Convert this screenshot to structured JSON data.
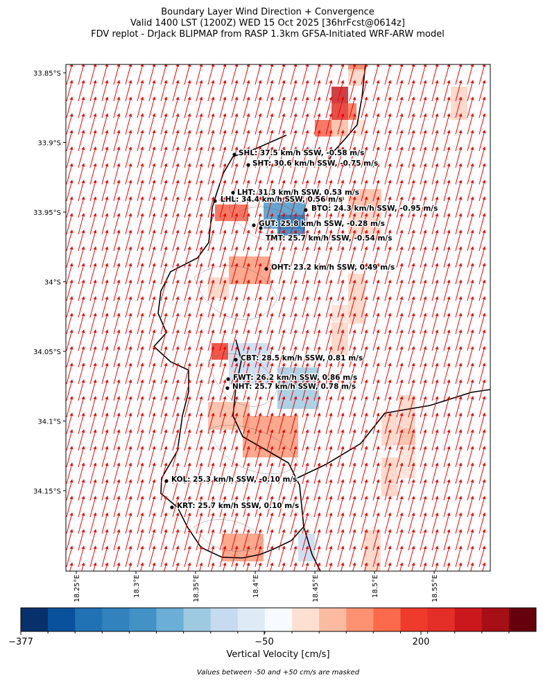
{
  "header": {
    "title_lines": [
      "Boundary Layer Wind Direction + Convergence",
      "Valid 1400 LST (1200Z) WED 15 Oct 2025 [36hrFcst@0614z]",
      "FDV replot - DrJack BLIPMAP from RASP 1.3km GFSA-Initiated WRF-ARW model"
    ]
  },
  "map": {
    "lat_range": [
      -34.2078,
      -33.844
    ],
    "lon_range": [
      18.2413,
      18.597
    ],
    "lat_ticks": [
      {
        "value": -33.85,
        "label": "33.85°S"
      },
      {
        "value": -33.9,
        "label": "33.9°S"
      },
      {
        "value": -33.95,
        "label": "33.95°S"
      },
      {
        "value": -34,
        "label": "34°S"
      },
      {
        "value": -34.05,
        "label": "34.05°S"
      },
      {
        "value": -34.1,
        "label": "34.1°S"
      },
      {
        "value": -34.15,
        "label": "34.15°S"
      }
    ],
    "lon_ticks": [
      {
        "value": 18.25,
        "label": "18.25°E"
      },
      {
        "value": 18.3,
        "label": "18.3°E"
      },
      {
        "value": 18.35,
        "label": "18.35°E"
      },
      {
        "value": 18.4,
        "label": "18.4°E"
      },
      {
        "value": 18.45,
        "label": "18.45°E"
      },
      {
        "value": 18.5,
        "label": "18.5°E"
      },
      {
        "value": 18.55,
        "label": "18.55°E"
      }
    ],
    "stations": [
      {
        "label": "SHL: 37.5 km/h SSW, -0.58 m/s"
      },
      {
        "label": "SHT: 30.6 km/h SSW, -0.75 m/s"
      },
      {
        "label": "LHT: 31.3 km/h SSW, 0.53 m/s"
      },
      {
        "label": "LHL: 34.4 km/h SSW, 0.56 m/s"
      },
      {
        "label": "BTO: 24.3 km/h SSW, -0.95 m/s"
      },
      {
        "label": "GUT: 25.8 km/h SSW, -0.28 m/s"
      },
      {
        "label": "TMT: 25.7 km/h SSW, -0.54 m/s"
      },
      {
        "label": "OHT: 23.2 km/h SSW, 0.49 m/s"
      },
      {
        "label": "CBT: 28.5 km/h SSW, 0.81 m/s"
      },
      {
        "label": "FWT: 26.2 km/h SSW, 0.86 m/s"
      },
      {
        "label": "NHT: 25.7 km/h SSW, 0.78 m/s"
      },
      {
        "label": "KOL: 25.3 km/h SSW, -0.10 m/s"
      },
      {
        "label": "KRT: 25.7 km/h SSW, 0.10 m/s"
      }
    ]
  },
  "colorbar": {
    "ticks": [
      {
        "value": -377,
        "label": "−377"
      },
      {
        "value": -50,
        "label": "−50"
      },
      200
    ],
    "label": "Vertical Velocity [cm/s]",
    "note": "Values between -50 and +50 cm/s are masked"
  }
}
